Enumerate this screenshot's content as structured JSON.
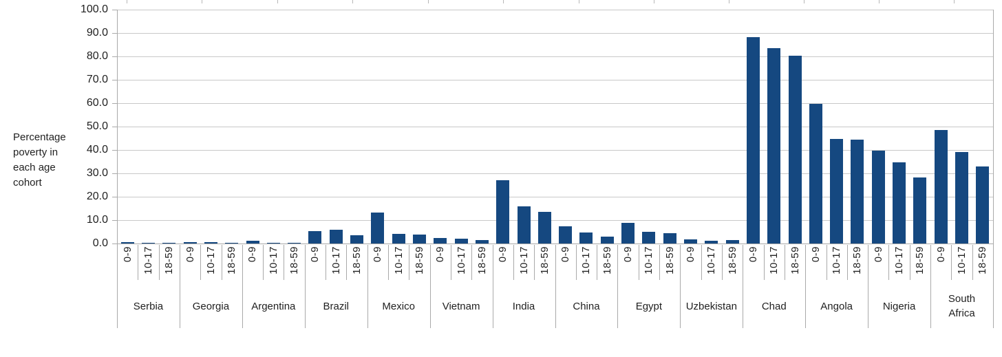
{
  "chart_data": {
    "type": "bar",
    "title": "",
    "ylabel": "Percentage poverty in each age cohort",
    "ylabel_display": "Percentage\npoverty in\neach age\ncohort",
    "xlabel": "",
    "ylim": [
      0,
      100
    ],
    "ytick_interval": 10,
    "ytick_labels": [
      "100.0",
      "90.0",
      "80.0",
      "70.0",
      "60.0",
      "50.0",
      "40.0",
      "30.0",
      "20.0",
      "10.0",
      "0.0"
    ],
    "grid": true,
    "legend": false,
    "cohort_categories": [
      "0-9",
      "10-17",
      "18-59"
    ],
    "countries": [
      {
        "name": "Serbia",
        "values": [
          0.6,
          0.4,
          0.2
        ]
      },
      {
        "name": "Georgia",
        "values": [
          0.7,
          0.6,
          0.4
        ]
      },
      {
        "name": "Argentina",
        "values": [
          1.2,
          0.3,
          0.4
        ]
      },
      {
        "name": "Brazil",
        "values": [
          5.2,
          5.8,
          3.5
        ]
      },
      {
        "name": "Mexico",
        "values": [
          13.2,
          4.2,
          3.9
        ]
      },
      {
        "name": "Vietnam",
        "values": [
          2.4,
          2.1,
          1.5
        ]
      },
      {
        "name": "India",
        "values": [
          27.0,
          15.8,
          13.6
        ]
      },
      {
        "name": "China",
        "values": [
          7.3,
          4.8,
          2.9
        ]
      },
      {
        "name": "Egypt",
        "values": [
          8.9,
          5.0,
          4.3
        ]
      },
      {
        "name": "Uzbekistan",
        "values": [
          1.7,
          1.2,
          1.6
        ]
      },
      {
        "name": "Chad",
        "values": [
          88.2,
          83.4,
          80.2
        ]
      },
      {
        "name": "Angola",
        "values": [
          59.8,
          44.8,
          44.5
        ]
      },
      {
        "name": "Nigeria",
        "values": [
          39.8,
          34.8,
          28.2
        ]
      },
      {
        "name": "South Africa",
        "values": [
          48.4,
          39.2,
          33.0
        ]
      }
    ]
  },
  "colors": {
    "bar": "#154880",
    "gridline": "#c8c8c8",
    "axis": "#a9a9a9",
    "ruler_tick": "#b7b7b7",
    "text": "#1f1f1f"
  }
}
